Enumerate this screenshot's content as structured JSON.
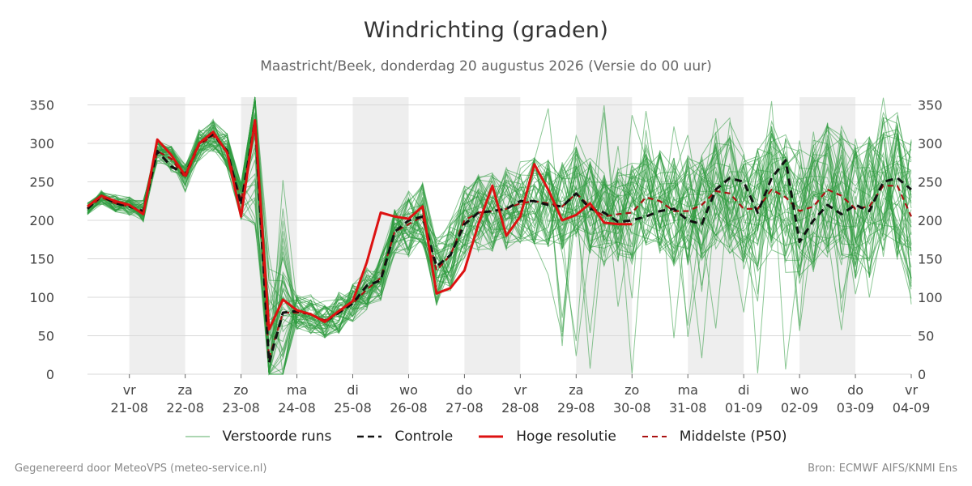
{
  "chart_data": {
    "type": "line",
    "title": "Windrichting (graden)",
    "subtitle": "Maastricht/Beek, donderdag 20 augustus 2026 (Versie do 00 uur)",
    "ylim": [
      0,
      360
    ],
    "yticks": [
      0,
      50,
      100,
      150,
      200,
      250,
      300,
      350
    ],
    "xlim": [
      -0.75,
      14
    ],
    "x_ticks": [
      {
        "x": 0,
        "day": "vr",
        "date": "21-08"
      },
      {
        "x": 1,
        "day": "za",
        "date": "22-08"
      },
      {
        "x": 2,
        "day": "zo",
        "date": "23-08"
      },
      {
        "x": 3,
        "day": "ma",
        "date": "24-08"
      },
      {
        "x": 4,
        "day": "di",
        "date": "25-08"
      },
      {
        "x": 5,
        "day": "wo",
        "date": "26-08"
      },
      {
        "x": 6,
        "day": "do",
        "date": "27-08"
      },
      {
        "x": 7,
        "day": "vr",
        "date": "28-08"
      },
      {
        "x": 8,
        "day": "za",
        "date": "29-08"
      },
      {
        "x": 9,
        "day": "zo",
        "date": "30-08"
      },
      {
        "x": 10,
        "day": "ma",
        "date": "31-08"
      },
      {
        "x": 11,
        "day": "di",
        "date": "01-09"
      },
      {
        "x": 12,
        "day": "wo",
        "date": "02-09"
      },
      {
        "x": 13,
        "day": "do",
        "date": "03-09"
      },
      {
        "x": 14,
        "day": "vr",
        "date": "04-09"
      }
    ],
    "shaded_days": [
      [
        0,
        1
      ],
      [
        2,
        3
      ],
      [
        4,
        5
      ],
      [
        6,
        7
      ],
      [
        8,
        9
      ],
      [
        10,
        11
      ],
      [
        12,
        13
      ]
    ],
    "grid": true,
    "legend_position": "bottom",
    "series": [
      {
        "name": "Controle",
        "style": "dashed",
        "color": "#111111",
        "x": [
          -0.75,
          -0.5,
          -0.25,
          0,
          0.25,
          0.5,
          0.75,
          1,
          1.25,
          1.5,
          1.75,
          2,
          2.25,
          2.5,
          2.75,
          3,
          3.25,
          3.5,
          3.75,
          4,
          4.25,
          4.5,
          4.75,
          5,
          5.25,
          5.5,
          5.75,
          6,
          6.25,
          6.5,
          6.75,
          7,
          7.25,
          7.5,
          7.75,
          8,
          8.25,
          8.5,
          8.75,
          9,
          9.25,
          9.5,
          9.75,
          10,
          10.25,
          10.5,
          10.75,
          11,
          11.25,
          11.5,
          11.75,
          12,
          12.25,
          12.5,
          12.75,
          13,
          13.25,
          13.5,
          13.75,
          14
        ],
        "y": [
          215,
          232,
          222,
          218,
          212,
          290,
          270,
          260,
          300,
          312,
          290,
          220,
          330,
          15,
          80,
          82,
          78,
          68,
          80,
          92,
          115,
          122,
          185,
          200,
          205,
          140,
          155,
          195,
          210,
          212,
          215,
          225,
          225,
          220,
          218,
          235,
          215,
          210,
          198,
          200,
          205,
          212,
          215,
          200,
          195,
          240,
          255,
          250,
          210,
          255,
          278,
          172,
          200,
          220,
          208,
          220,
          212,
          250,
          255,
          240
        ]
      },
      {
        "name": "Hoge resolutie",
        "style": "solid",
        "color": "#dd1111",
        "x": [
          -0.75,
          -0.5,
          -0.25,
          0,
          0.25,
          0.5,
          0.75,
          1,
          1.25,
          1.5,
          1.75,
          2,
          2.25,
          2.5,
          2.75,
          3,
          3.25,
          3.5,
          3.75,
          4,
          4.25,
          4.5,
          4.75,
          5,
          5.25,
          5.5,
          5.75,
          6,
          6.25,
          6.5,
          6.75,
          7,
          7.25,
          7.5,
          7.75,
          8,
          8.25,
          8.5,
          8.75,
          9
        ],
        "y": [
          218,
          232,
          225,
          220,
          208,
          305,
          285,
          258,
          300,
          315,
          288,
          205,
          330,
          58,
          97,
          83,
          78,
          68,
          82,
          95,
          145,
          210,
          205,
          202,
          218,
          105,
          112,
          135,
          195,
          245,
          180,
          205,
          273,
          240,
          200,
          207,
          222,
          197,
          195,
          195
        ]
      },
      {
        "name": "Middelste (P50)",
        "style": "dashed",
        "color": "#aa1111",
        "x": [
          -0.75,
          -0.5,
          -0.25,
          0,
          0.25,
          0.5,
          0.75,
          1,
          1.25,
          1.5,
          1.75,
          2,
          2.25,
          2.5,
          2.75,
          3,
          3.25,
          3.5,
          3.75,
          4,
          4.25,
          4.5,
          4.75,
          5,
          5.25,
          5.5,
          5.75,
          6,
          6.25,
          6.5,
          6.75,
          7,
          7.25,
          7.5,
          7.75,
          8,
          8.25,
          8.5,
          8.75,
          9,
          9.25,
          9.5,
          9.75,
          10,
          10.25,
          10.5,
          10.75,
          11,
          11.25,
          11.5,
          11.75,
          12,
          12.25,
          12.5,
          12.75,
          13,
          13.25,
          13.5,
          13.75,
          14
        ],
        "y": [
          215,
          230,
          222,
          218,
          212,
          290,
          280,
          255,
          298,
          310,
          290,
          225,
          325,
          20,
          80,
          80,
          78,
          70,
          80,
          92,
          110,
          125,
          185,
          195,
          205,
          135,
          155,
          200,
          210,
          212,
          215,
          222,
          225,
          222,
          218,
          235,
          218,
          205,
          208,
          210,
          230,
          225,
          212,
          212,
          220,
          238,
          235,
          215,
          215,
          240,
          230,
          212,
          218,
          240,
          232,
          215,
          218,
          245,
          245,
          205
        ]
      }
    ],
    "ensemble_runs": {
      "name": "Verstoorde runs",
      "color": "#2e9a3e",
      "count": 50
    }
  },
  "legend": {
    "perturbed": "Verstoorde runs",
    "control": "Controle",
    "high_res": "Hoge resolutie",
    "median": "Middelste (P50)"
  },
  "footer": {
    "left": "Gegenereerd door MeteoVPS (meteo-service.nl)",
    "right": "Bron: ECMWF AIFS/KNMI Ens"
  }
}
